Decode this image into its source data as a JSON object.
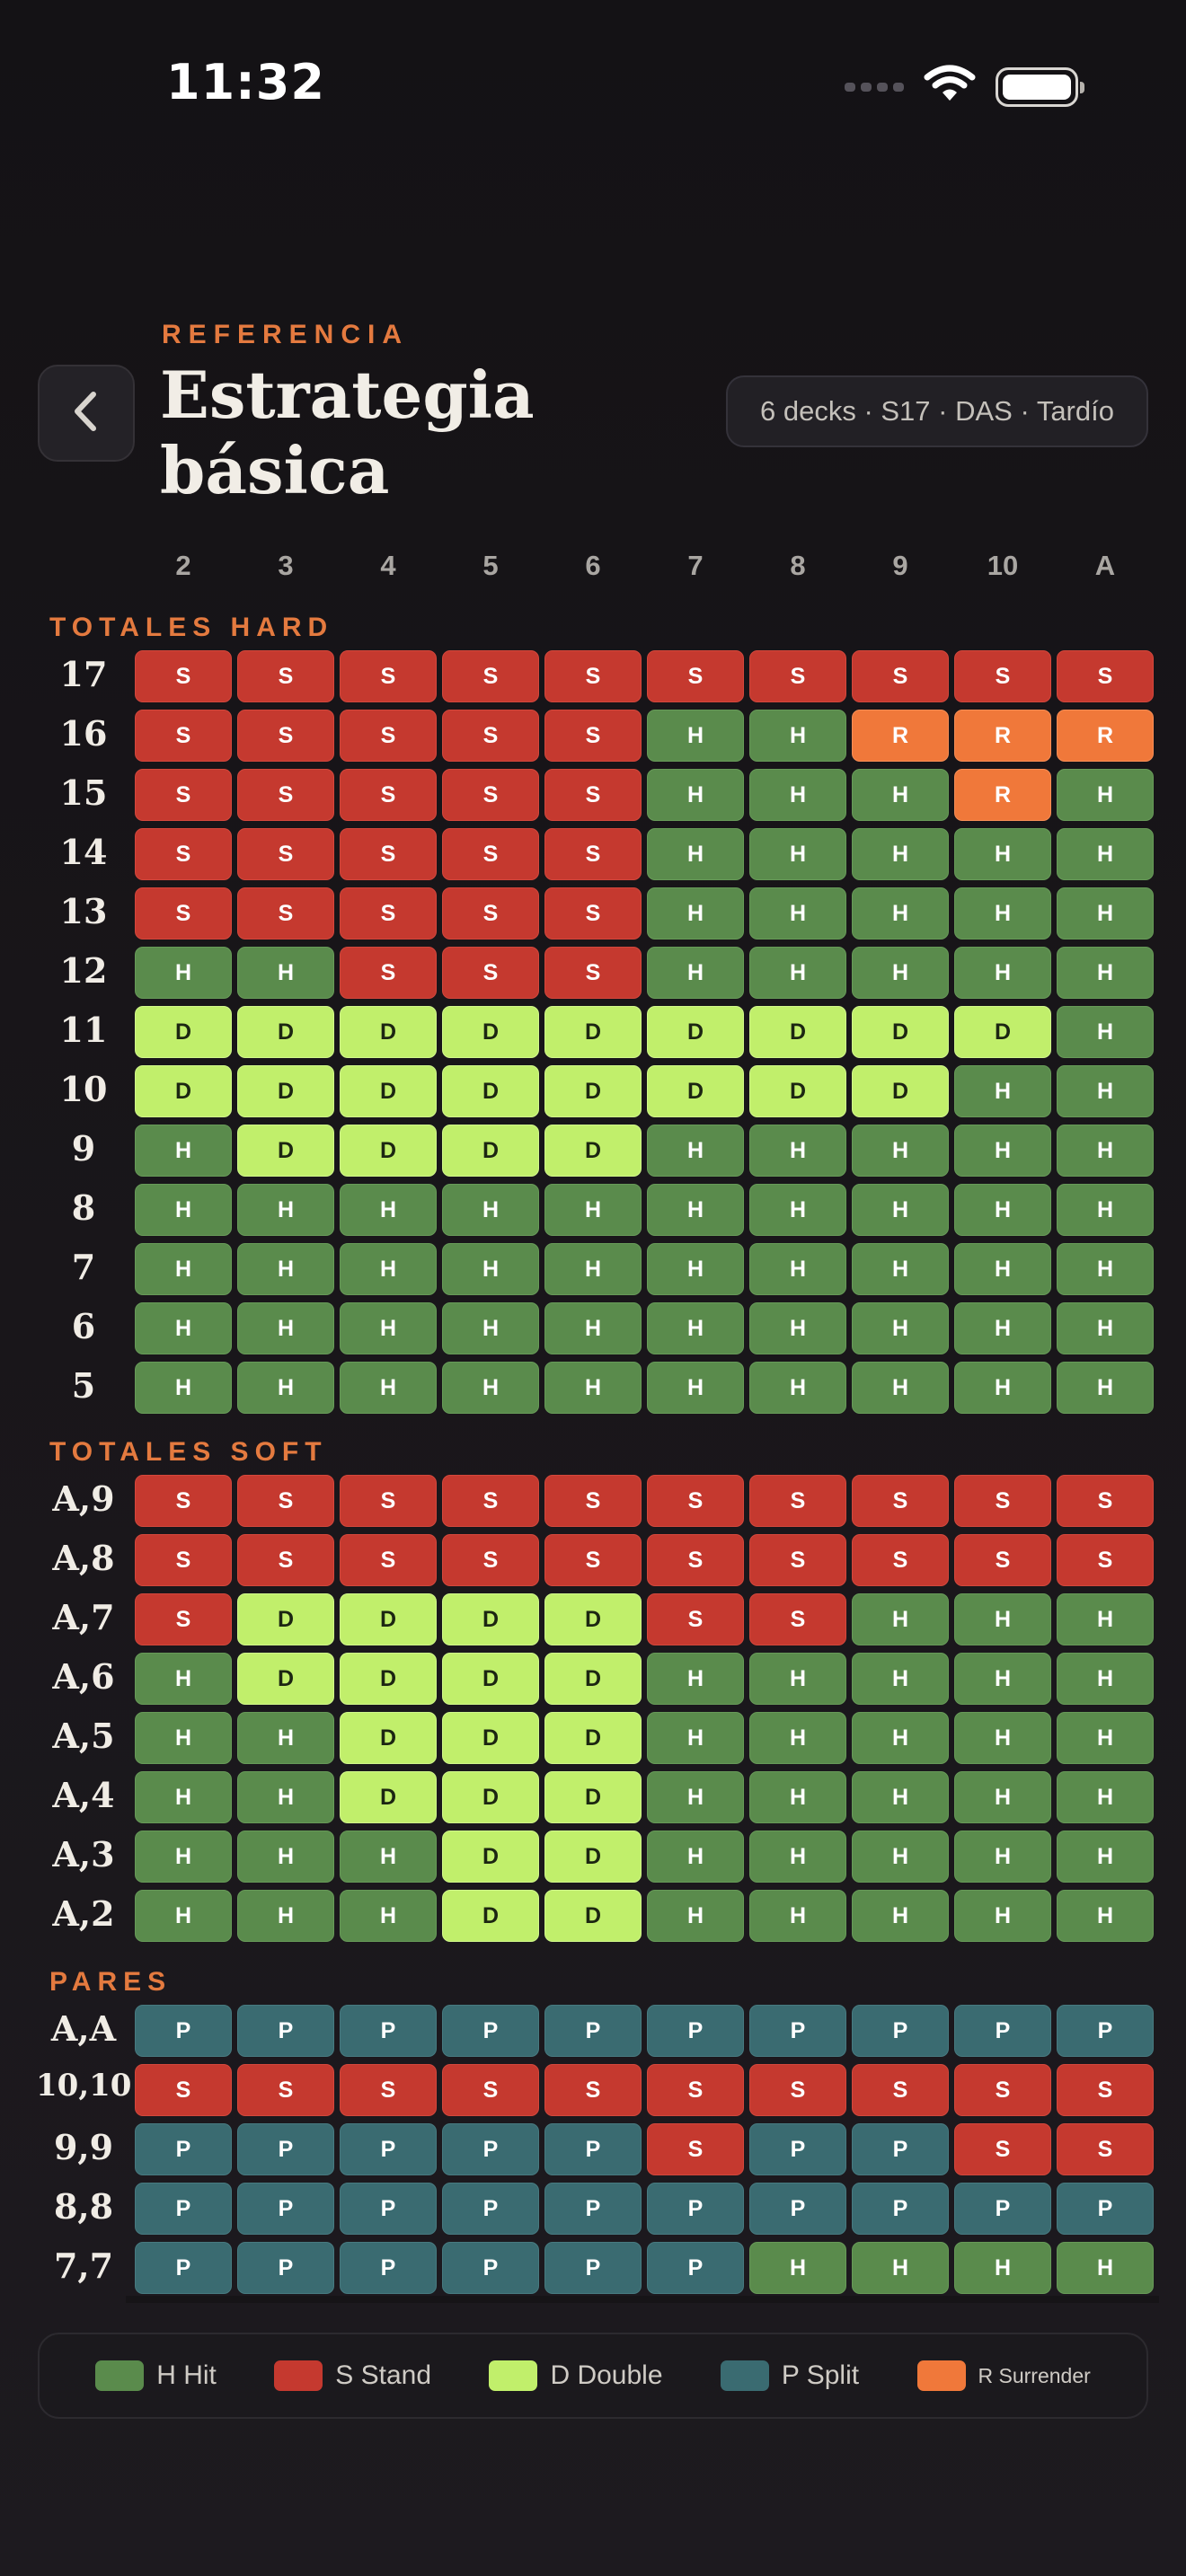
{
  "status_bar": {
    "time": "11:32"
  },
  "header": {
    "eyebrow": "REFERENCIA",
    "title": "Estrategia básica",
    "rules": "6 decks · S17 · DAS · Tardío"
  },
  "dealer_columns": [
    "2",
    "3",
    "4",
    "5",
    "6",
    "7",
    "8",
    "9",
    "10",
    "A"
  ],
  "sections": [
    {
      "label": "TOTALES HARD",
      "rows": [
        {
          "label": "17",
          "cells": [
            "S",
            "S",
            "S",
            "S",
            "S",
            "S",
            "S",
            "S",
            "S",
            "S"
          ]
        },
        {
          "label": "16",
          "cells": [
            "S",
            "S",
            "S",
            "S",
            "S",
            "H",
            "H",
            "R",
            "R",
            "R"
          ]
        },
        {
          "label": "15",
          "cells": [
            "S",
            "S",
            "S",
            "S",
            "S",
            "H",
            "H",
            "H",
            "R",
            "H"
          ]
        },
        {
          "label": "14",
          "cells": [
            "S",
            "S",
            "S",
            "S",
            "S",
            "H",
            "H",
            "H",
            "H",
            "H"
          ]
        },
        {
          "label": "13",
          "cells": [
            "S",
            "S",
            "S",
            "S",
            "S",
            "H",
            "H",
            "H",
            "H",
            "H"
          ]
        },
        {
          "label": "12",
          "cells": [
            "H",
            "H",
            "S",
            "S",
            "S",
            "H",
            "H",
            "H",
            "H",
            "H"
          ]
        },
        {
          "label": "11",
          "cells": [
            "D",
            "D",
            "D",
            "D",
            "D",
            "D",
            "D",
            "D",
            "D",
            "H"
          ]
        },
        {
          "label": "10",
          "cells": [
            "D",
            "D",
            "D",
            "D",
            "D",
            "D",
            "D",
            "D",
            "H",
            "H"
          ]
        },
        {
          "label": "9",
          "cells": [
            "H",
            "D",
            "D",
            "D",
            "D",
            "H",
            "H",
            "H",
            "H",
            "H"
          ]
        },
        {
          "label": "8",
          "cells": [
            "H",
            "H",
            "H",
            "H",
            "H",
            "H",
            "H",
            "H",
            "H",
            "H"
          ]
        },
        {
          "label": "7",
          "cells": [
            "H",
            "H",
            "H",
            "H",
            "H",
            "H",
            "H",
            "H",
            "H",
            "H"
          ]
        },
        {
          "label": "6",
          "cells": [
            "H",
            "H",
            "H",
            "H",
            "H",
            "H",
            "H",
            "H",
            "H",
            "H"
          ]
        },
        {
          "label": "5",
          "cells": [
            "H",
            "H",
            "H",
            "H",
            "H",
            "H",
            "H",
            "H",
            "H",
            "H"
          ]
        }
      ]
    },
    {
      "label": "TOTALES SOFT",
      "rows": [
        {
          "label": "A,9",
          "cells": [
            "S",
            "S",
            "S",
            "S",
            "S",
            "S",
            "S",
            "S",
            "S",
            "S"
          ]
        },
        {
          "label": "A,8",
          "cells": [
            "S",
            "S",
            "S",
            "S",
            "S",
            "S",
            "S",
            "S",
            "S",
            "S"
          ]
        },
        {
          "label": "A,7",
          "cells": [
            "S",
            "D",
            "D",
            "D",
            "D",
            "S",
            "S",
            "H",
            "H",
            "H"
          ]
        },
        {
          "label": "A,6",
          "cells": [
            "H",
            "D",
            "D",
            "D",
            "D",
            "H",
            "H",
            "H",
            "H",
            "H"
          ]
        },
        {
          "label": "A,5",
          "cells": [
            "H",
            "H",
            "D",
            "D",
            "D",
            "H",
            "H",
            "H",
            "H",
            "H"
          ]
        },
        {
          "label": "A,4",
          "cells": [
            "H",
            "H",
            "D",
            "D",
            "D",
            "H",
            "H",
            "H",
            "H",
            "H"
          ]
        },
        {
          "label": "A,3",
          "cells": [
            "H",
            "H",
            "H",
            "D",
            "D",
            "H",
            "H",
            "H",
            "H",
            "H"
          ]
        },
        {
          "label": "A,2",
          "cells": [
            "H",
            "H",
            "H",
            "D",
            "D",
            "H",
            "H",
            "H",
            "H",
            "H"
          ]
        }
      ]
    },
    {
      "label": "PARES",
      "rows": [
        {
          "label": "A,A",
          "cells": [
            "P",
            "P",
            "P",
            "P",
            "P",
            "P",
            "P",
            "P",
            "P",
            "P"
          ]
        },
        {
          "label": "10,10",
          "cells": [
            "S",
            "S",
            "S",
            "S",
            "S",
            "S",
            "S",
            "S",
            "S",
            "S"
          ]
        },
        {
          "label": "9,9",
          "cells": [
            "P",
            "P",
            "P",
            "P",
            "P",
            "S",
            "P",
            "P",
            "S",
            "S"
          ]
        },
        {
          "label": "8,8",
          "cells": [
            "P",
            "P",
            "P",
            "P",
            "P",
            "P",
            "P",
            "P",
            "P",
            "P"
          ]
        },
        {
          "label": "7,7",
          "cells": [
            "P",
            "P",
            "P",
            "P",
            "P",
            "P",
            "H",
            "H",
            "H",
            "H"
          ]
        }
      ]
    }
  ],
  "legend": [
    {
      "key": "H",
      "label": "H Hit",
      "color": "#5a8b4c"
    },
    {
      "key": "S",
      "label": "S Stand",
      "color": "#c5392f"
    },
    {
      "key": "D",
      "label": "D Double",
      "color": "#c1ef6b"
    },
    {
      "key": "P",
      "label": "P Split",
      "color": "#3a6b71"
    },
    {
      "key": "R",
      "label": "R Surrender",
      "color": "#f0783a"
    }
  ]
}
